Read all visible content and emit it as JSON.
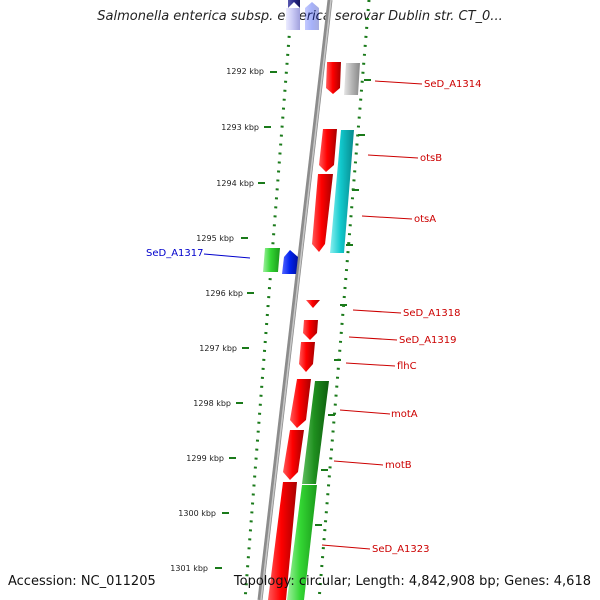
{
  "title": "Salmonella enterica subsp. enterica serovar Dublin str. CT_0...",
  "footer": {
    "accession": "Accession: NC_011205",
    "topology": "Topology: circular; Length: 4,842,908 bp; Genes: 4,618"
  },
  "colors": {
    "gene_red": "#ff0000",
    "gene_green": "#22aa22",
    "gene_cyan": "#11c8cc",
    "gene_blue": "#0022ee",
    "gene_gray": "#b0b0b0",
    "gene_navy": "#2a2a8a",
    "gene_lavender": "#c8c8f4",
    "backbone": "#8c8c8c",
    "tick_green": "#1a7a1a",
    "label_red": "#cc0000",
    "label_blue": "#0000cc"
  },
  "kbp_ticks": [
    "1292 kbp",
    "1293 kbp",
    "1294 kbp",
    "1295 kbp",
    "1296 kbp",
    "1297 kbp",
    "1298 kbp",
    "1299 kbp",
    "1300 kbp",
    "1301 kbp"
  ],
  "gene_labels": [
    {
      "text": "SeD_A1314",
      "color": "red"
    },
    {
      "text": "otsB",
      "color": "red"
    },
    {
      "text": "otsA",
      "color": "red"
    },
    {
      "text": "SeD_A1317",
      "color": "blue"
    },
    {
      "text": "SeD_A1318",
      "color": "red"
    },
    {
      "text": "SeD_A1319",
      "color": "red"
    },
    {
      "text": "flhC",
      "color": "red"
    },
    {
      "text": "motA",
      "color": "red"
    },
    {
      "text": "motB",
      "color": "red"
    },
    {
      "text": "SeD_A1323",
      "color": "red"
    }
  ]
}
